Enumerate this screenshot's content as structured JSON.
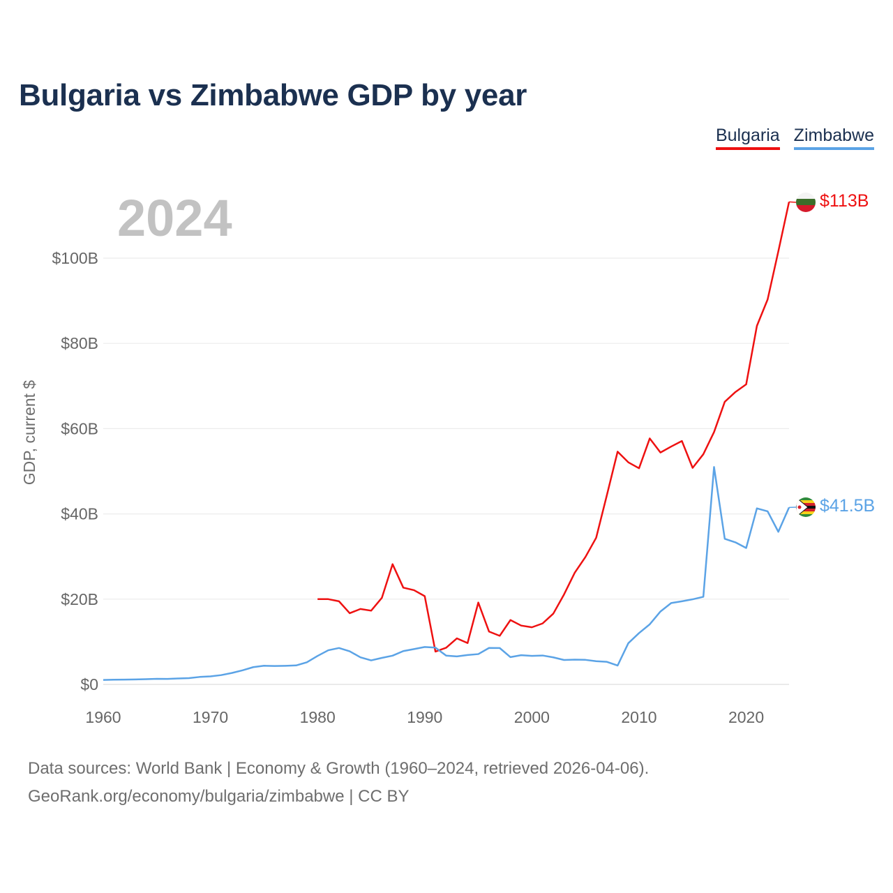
{
  "title": "Bulgaria vs Zimbabwe GDP by year",
  "legend": [
    {
      "label": "Bulgaria",
      "color": "#ee1111"
    },
    {
      "label": "Zimbabwe",
      "color": "#5ba3e6"
    }
  ],
  "year_label": "2024",
  "footer": {
    "line1": "Data sources: World Bank | Economy & Growth (1960–2024, retrieved 2026-04-06).",
    "line2": "GeoRank.org/economy/bulgaria/zimbabwe | CC BY"
  },
  "chart_data": {
    "type": "line",
    "title": "Bulgaria vs Zimbabwe GDP by year",
    "xlabel": "",
    "ylabel": "GDP, current $",
    "xlim": [
      1960,
      2024
    ],
    "ylim": [
      0,
      115
    ],
    "x_ticks": [
      1960,
      1970,
      1980,
      1990,
      2000,
      2010,
      2020
    ],
    "x_tick_labels": [
      "1960",
      "1970",
      "1980",
      "1990",
      "2000",
      "2010",
      "2020"
    ],
    "y_ticks": [
      0,
      20,
      40,
      60,
      80,
      100
    ],
    "y_tick_labels": [
      "$0",
      "$20B",
      "$40B",
      "$60B",
      "$80B",
      "$100B"
    ],
    "grid": true,
    "legend_position": "top-right",
    "series": [
      {
        "name": "Bulgaria",
        "color": "#ee1111",
        "flag": "bulgaria-flag",
        "end_label": "$113B",
        "x": [
          1980,
          1981,
          1982,
          1983,
          1984,
          1985,
          1986,
          1987,
          1988,
          1989,
          1990,
          1991,
          1992,
          1993,
          1994,
          1995,
          1996,
          1997,
          1998,
          1999,
          2000,
          2001,
          2002,
          2003,
          2004,
          2005,
          2006,
          2007,
          2008,
          2009,
          2010,
          2011,
          2012,
          2013,
          2014,
          2015,
          2016,
          2017,
          2018,
          2019,
          2020,
          2021,
          2022,
          2023,
          2024
        ],
        "values": [
          20.0,
          20.0,
          19.5,
          16.7,
          17.7,
          17.3,
          20.3,
          28.2,
          22.7,
          22.1,
          20.7,
          7.7,
          8.6,
          10.8,
          9.7,
          19.2,
          12.4,
          11.4,
          15.1,
          13.8,
          13.4,
          14.3,
          16.6,
          21.1,
          26.2,
          29.9,
          34.4,
          44.4,
          54.6,
          52.1,
          50.7,
          57.7,
          54.4,
          55.8,
          57.1,
          50.8,
          54.0,
          59.2,
          66.3,
          68.6,
          70.4,
          84.1,
          90.3,
          101.6,
          113.2
        ]
      },
      {
        "name": "Zimbabwe",
        "color": "#5ba3e6",
        "flag": "zimbabwe-flag",
        "end_label": "$41.5B",
        "x": [
          1960,
          1961,
          1962,
          1963,
          1964,
          1965,
          1966,
          1967,
          1968,
          1969,
          1970,
          1971,
          1972,
          1973,
          1974,
          1975,
          1976,
          1977,
          1978,
          1979,
          1980,
          1981,
          1982,
          1983,
          1984,
          1985,
          1986,
          1987,
          1988,
          1989,
          1990,
          1991,
          1992,
          1993,
          1994,
          1995,
          1996,
          1997,
          1998,
          1999,
          2000,
          2001,
          2002,
          2003,
          2004,
          2005,
          2006,
          2007,
          2008,
          2009,
          2010,
          2011,
          2012,
          2013,
          2014,
          2015,
          2016,
          2017,
          2018,
          2019,
          2020,
          2021,
          2022,
          2023,
          2024
        ],
        "values": [
          1.05,
          1.1,
          1.12,
          1.16,
          1.22,
          1.31,
          1.28,
          1.4,
          1.47,
          1.75,
          1.88,
          2.18,
          2.68,
          3.31,
          4.05,
          4.37,
          4.32,
          4.36,
          4.45,
          5.18,
          6.68,
          8.01,
          8.54,
          7.76,
          6.35,
          5.64,
          6.22,
          6.74,
          7.81,
          8.29,
          8.78,
          8.64,
          6.75,
          6.56,
          6.89,
          7.11,
          8.55,
          8.53,
          6.4,
          6.86,
          6.69,
          6.78,
          6.34,
          5.73,
          5.81,
          5.76,
          5.44,
          5.29,
          4.42,
          9.67,
          12.04,
          14.1,
          17.11,
          19.09,
          19.5,
          19.96,
          20.55,
          51.0,
          34.16,
          33.32,
          32.0,
          41.3,
          40.6,
          35.8,
          41.5
        ]
      }
    ]
  }
}
